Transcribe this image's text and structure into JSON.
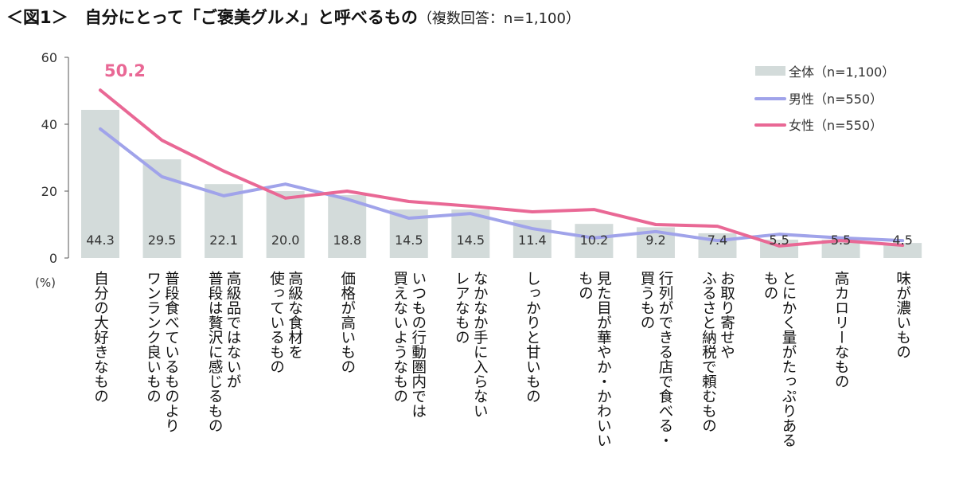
{
  "title": {
    "main": "＜図1＞　自分にとって「ご褒美グルメ」と呼べるもの",
    "sub": "（複数回答：n=1,100）"
  },
  "chart_data": {
    "type": "bar",
    "title": "＜図1＞　自分にとって「ご褒美グルメ」と呼べるもの（複数回答：n=1,100）",
    "ylabel": "(%)",
    "ylim": [
      0,
      60
    ],
    "yticks": [
      0,
      20,
      40,
      60
    ],
    "grid": false,
    "legend_position": "top-right",
    "categories": [
      "自分の大好きなもの",
      "普段食べているものより\nワンランク良いもの",
      "高級品ではないが\n普段は贅沢に感じるもの",
      "高級な食材を\n使っているもの",
      "価格が高いもの",
      "いつもの行動圏内では\n買えないようなもの",
      "なかなか手に入らない\nレアなもの",
      "しっかりと甘いもの",
      "見た目が華やか・かわいい\nもの",
      "行列ができる店で食べる・\n買うもの",
      "お取り寄せや\nふるさと納税で頼むもの",
      "とにかく量がたっぷりある\nもの",
      "高カロリーなもの",
      "味が濃いもの"
    ],
    "series": [
      {
        "name": "全体（n=1,100）",
        "type": "bar",
        "color": "#d3dbda",
        "values": [
          44.3,
          29.5,
          22.1,
          20.0,
          18.8,
          14.5,
          14.5,
          11.4,
          10.2,
          9.2,
          7.4,
          5.5,
          5.5,
          4.5
        ]
      },
      {
        "name": "男性（n=550）",
        "type": "line",
        "color": "#a0a3ea",
        "values": [
          38.6,
          24.3,
          18.6,
          22.1,
          17.6,
          11.9,
          13.3,
          8.8,
          6.0,
          7.9,
          5.2,
          7.1,
          6.0,
          5.2
        ]
      },
      {
        "name": "女性（n=550）",
        "type": "line",
        "color": "#e96895",
        "values": [
          50.2,
          35.2,
          26.0,
          17.9,
          20.0,
          16.9,
          15.5,
          13.8,
          14.5,
          10.0,
          9.5,
          3.6,
          5.2,
          3.8
        ]
      }
    ],
    "annotations": [
      "50.2"
    ]
  }
}
